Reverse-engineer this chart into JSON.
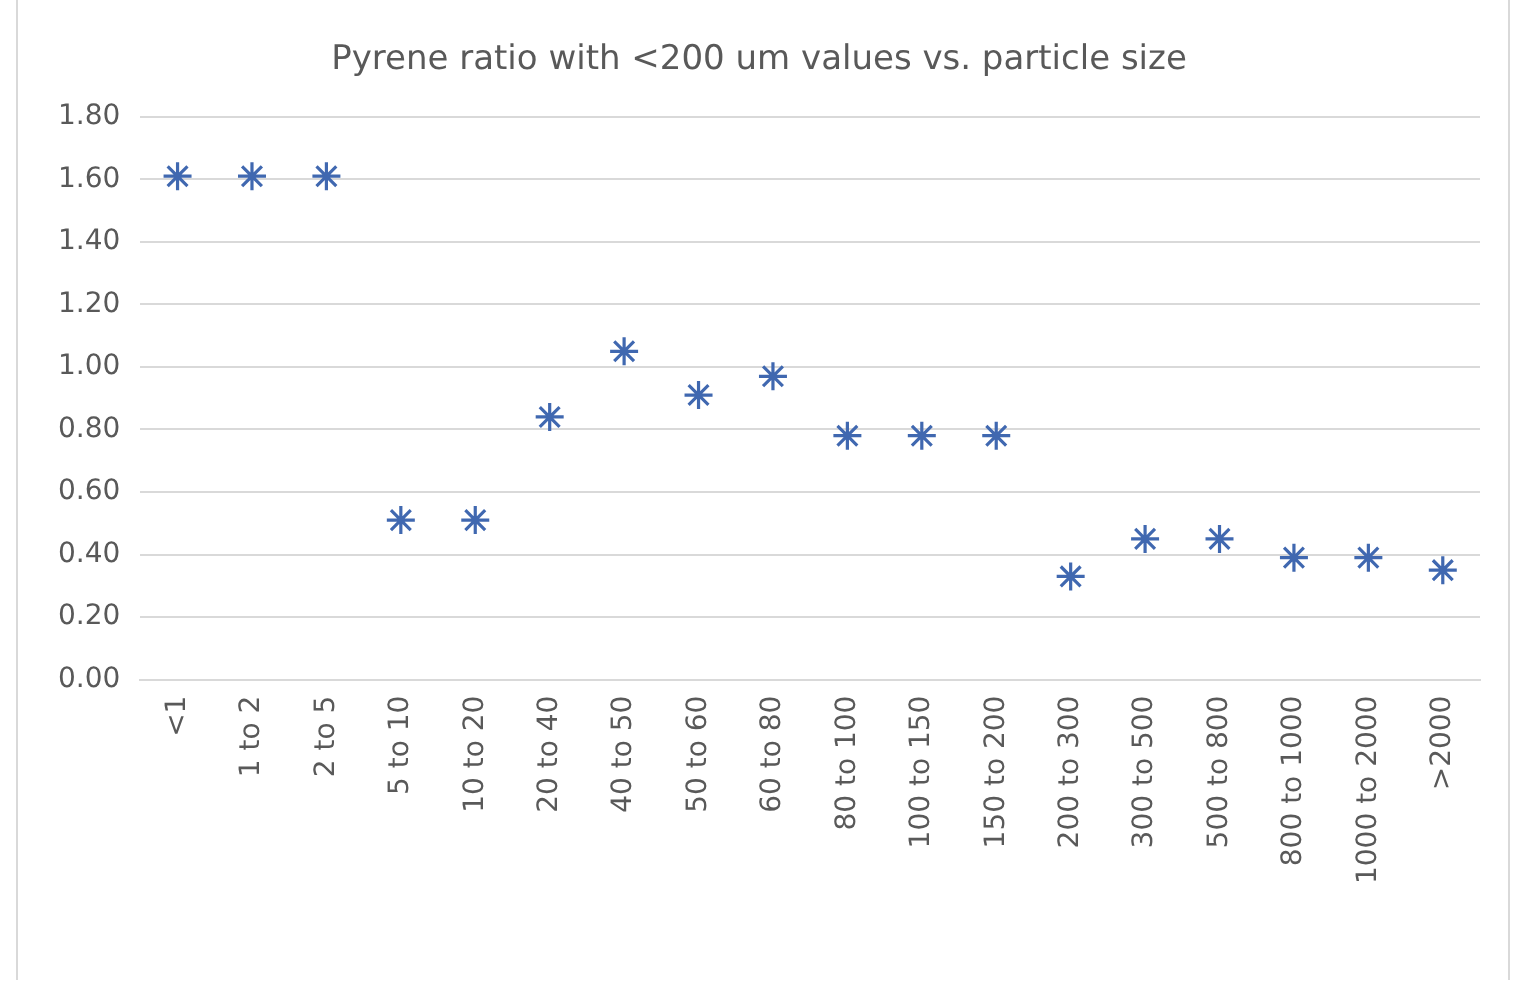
{
  "chart_data": {
    "type": "scatter",
    "title": "Pyrene ratio with <200 um values vs. particle size",
    "categories": [
      "<1",
      "1 to 2",
      "2 to 5",
      "5 to 10",
      "10 to 20",
      "20 to 40",
      "40 to 50",
      "50 to 60",
      "60 to 80",
      "80 to 100",
      "100 to 150",
      "150 to 200",
      "200 to 300",
      "300 to 500",
      "500 to 800",
      "800 to 1000",
      "1000 to 2000",
      ">2000"
    ],
    "series": [
      {
        "color": "#4068b0",
        "values": [
          1.61,
          1.61,
          1.61,
          0.51,
          0.51,
          0.84,
          1.05,
          0.91,
          0.97,
          0.78,
          0.78,
          0.78,
          0.33,
          0.45,
          0.45,
          0.39,
          0.39,
          0.35
        ]
      }
    ],
    "ylim": [
      0,
      1.8
    ],
    "yticks": [
      {
        "value": 0,
        "label": "0.00"
      },
      {
        "value": 0.2,
        "label": "0.20"
      },
      {
        "value": 0.4,
        "label": "0.40"
      },
      {
        "value": 0.6,
        "label": "0.60"
      },
      {
        "value": 0.8,
        "label": "0.80"
      },
      {
        "value": 1,
        "label": "1.00"
      },
      {
        "value": 1.2,
        "label": "1.20"
      },
      {
        "value": 1.4,
        "label": "1.40"
      },
      {
        "value": 1.6,
        "label": "1.60"
      },
      {
        "value": 1.8,
        "label": "1.80"
      }
    ],
    "grid": "y",
    "legend": false,
    "marker": "cross"
  }
}
